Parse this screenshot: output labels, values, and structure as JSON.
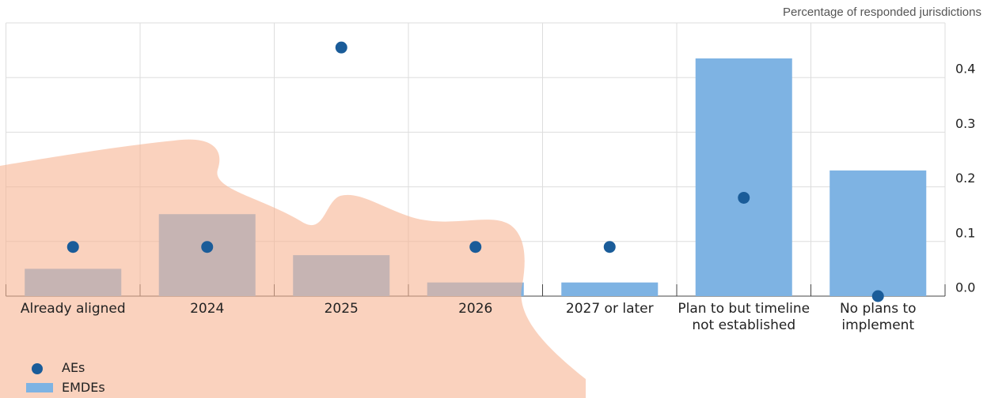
{
  "chart_data": {
    "type": "bar",
    "y_axis_label": "Percentage of responded jurisdictions",
    "categories": [
      "Already aligned",
      "2024",
      "2025",
      "2026",
      "2027 or later",
      "Plan to but timeline\nnot established",
      "No plans to\nimplement"
    ],
    "series": [
      {
        "name": "EMDEs",
        "type": "bar",
        "color": "#7eb3e3",
        "values": [
          0.05,
          0.15,
          0.075,
          0.025,
          0.025,
          0.435,
          0.23
        ]
      },
      {
        "name": "AEs",
        "type": "scatter",
        "color": "#1a5c99",
        "values": [
          0.09,
          0.09,
          0.455,
          0.09,
          0.09,
          0.18,
          0.0
        ]
      }
    ],
    "ylim": [
      0,
      0.5
    ],
    "yticks": [
      {
        "value": 0,
        "label": "0.0"
      },
      0.1,
      0.2,
      0.3,
      0.4
    ],
    "grid": true
  }
}
